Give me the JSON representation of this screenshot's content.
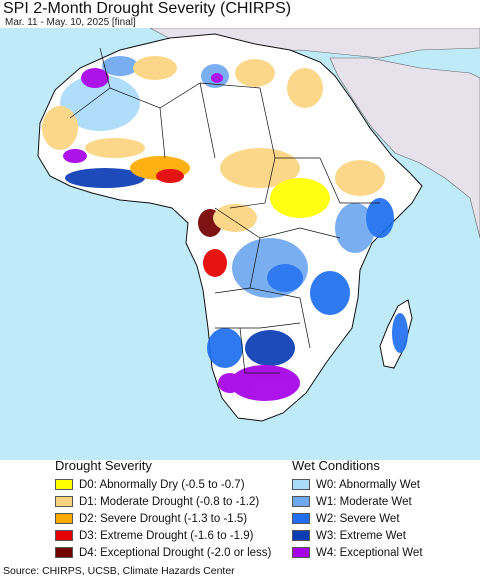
{
  "header": {
    "title": "SPI 2-Month Drought Severity (CHIRPS)",
    "subtitle": "Mar. 11 - May. 10, 2025 [final]"
  },
  "map": {
    "colors": {
      "ocean": "#bfeaf8",
      "land_no_data": "#ffffff",
      "outside": "#e6e1ea",
      "border": "#111111"
    }
  },
  "legend": {
    "drought_heading": "Drought Severity",
    "wet_heading": "Wet Conditions",
    "drought_items": [
      {
        "label": "D0: Abnormally Dry (-0.5 to -0.7)",
        "color": "#ffff00"
      },
      {
        "label": "D1: Moderate Drought (-0.8 to -1.2)",
        "color": "#fcd37f"
      },
      {
        "label": "D2: Severe Drought (-1.3 to -1.5)",
        "color": "#ffaa00"
      },
      {
        "label": "D3: Extreme Drought (-1.6 to -1.9)",
        "color": "#e60000"
      },
      {
        "label": "D4: Exceptional Drought (-2.0 or less)",
        "color": "#730000"
      }
    ],
    "wet_items": [
      {
        "label": "W0: Abnormally Wet",
        "color": "#aadcfa"
      },
      {
        "label": "W1: Moderate Wet",
        "color": "#6ea8f0"
      },
      {
        "label": "W2: Severe Wet",
        "color": "#1f6ff0"
      },
      {
        "label": "W3: Extreme Wet",
        "color": "#0a3cb4"
      },
      {
        "label": "W4: Exceptional Wet",
        "color": "#a600e8"
      }
    ]
  },
  "footer": {
    "source": "Source: CHIRPS, UCSB, Climate Hazards Center"
  }
}
